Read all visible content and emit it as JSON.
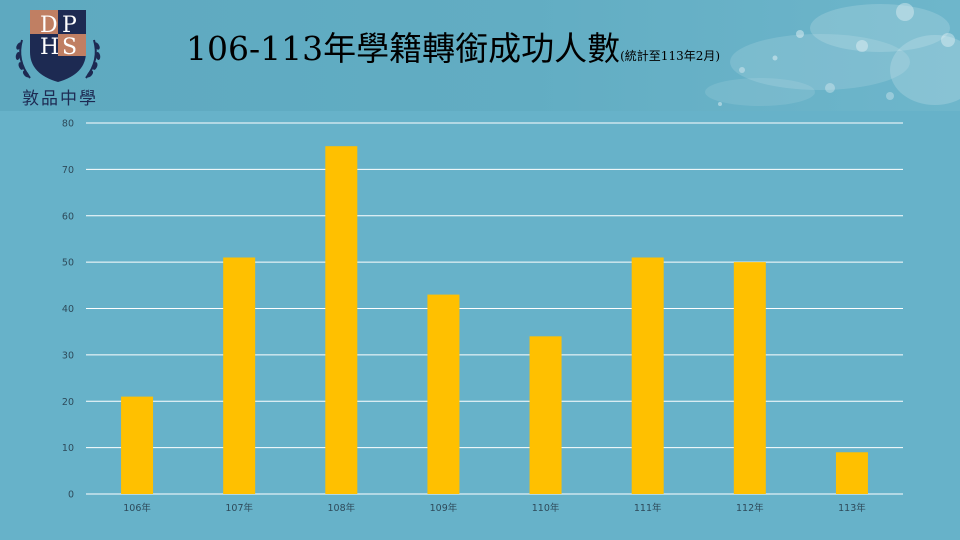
{
  "school": {
    "name": "敦品中學",
    "logo_letters": "DHPS",
    "logo_icon": "crest-with-laurel-icon"
  },
  "title": {
    "main": "106-113年學籍轉銜成功人數",
    "sub": "(統計至113年2月)"
  },
  "colors": {
    "background": "#67b2c9",
    "bar": "#ffc000",
    "gridline": "#ffffff",
    "tick_text": "#2e4a5a",
    "crest_navy": "#1d2a52",
    "crest_copper": "#c07f63"
  },
  "chart_data": {
    "type": "bar",
    "categories": [
      "106年",
      "107年",
      "108年",
      "109年",
      "110年",
      "111年",
      "112年",
      "113年"
    ],
    "values": [
      21,
      51,
      75,
      43,
      34,
      51,
      50,
      9
    ],
    "ylim": [
      0,
      80
    ],
    "yticks": [
      0,
      10,
      20,
      30,
      40,
      50,
      60,
      70,
      80
    ],
    "grid": true,
    "legend": "none",
    "data_labels": false
  }
}
